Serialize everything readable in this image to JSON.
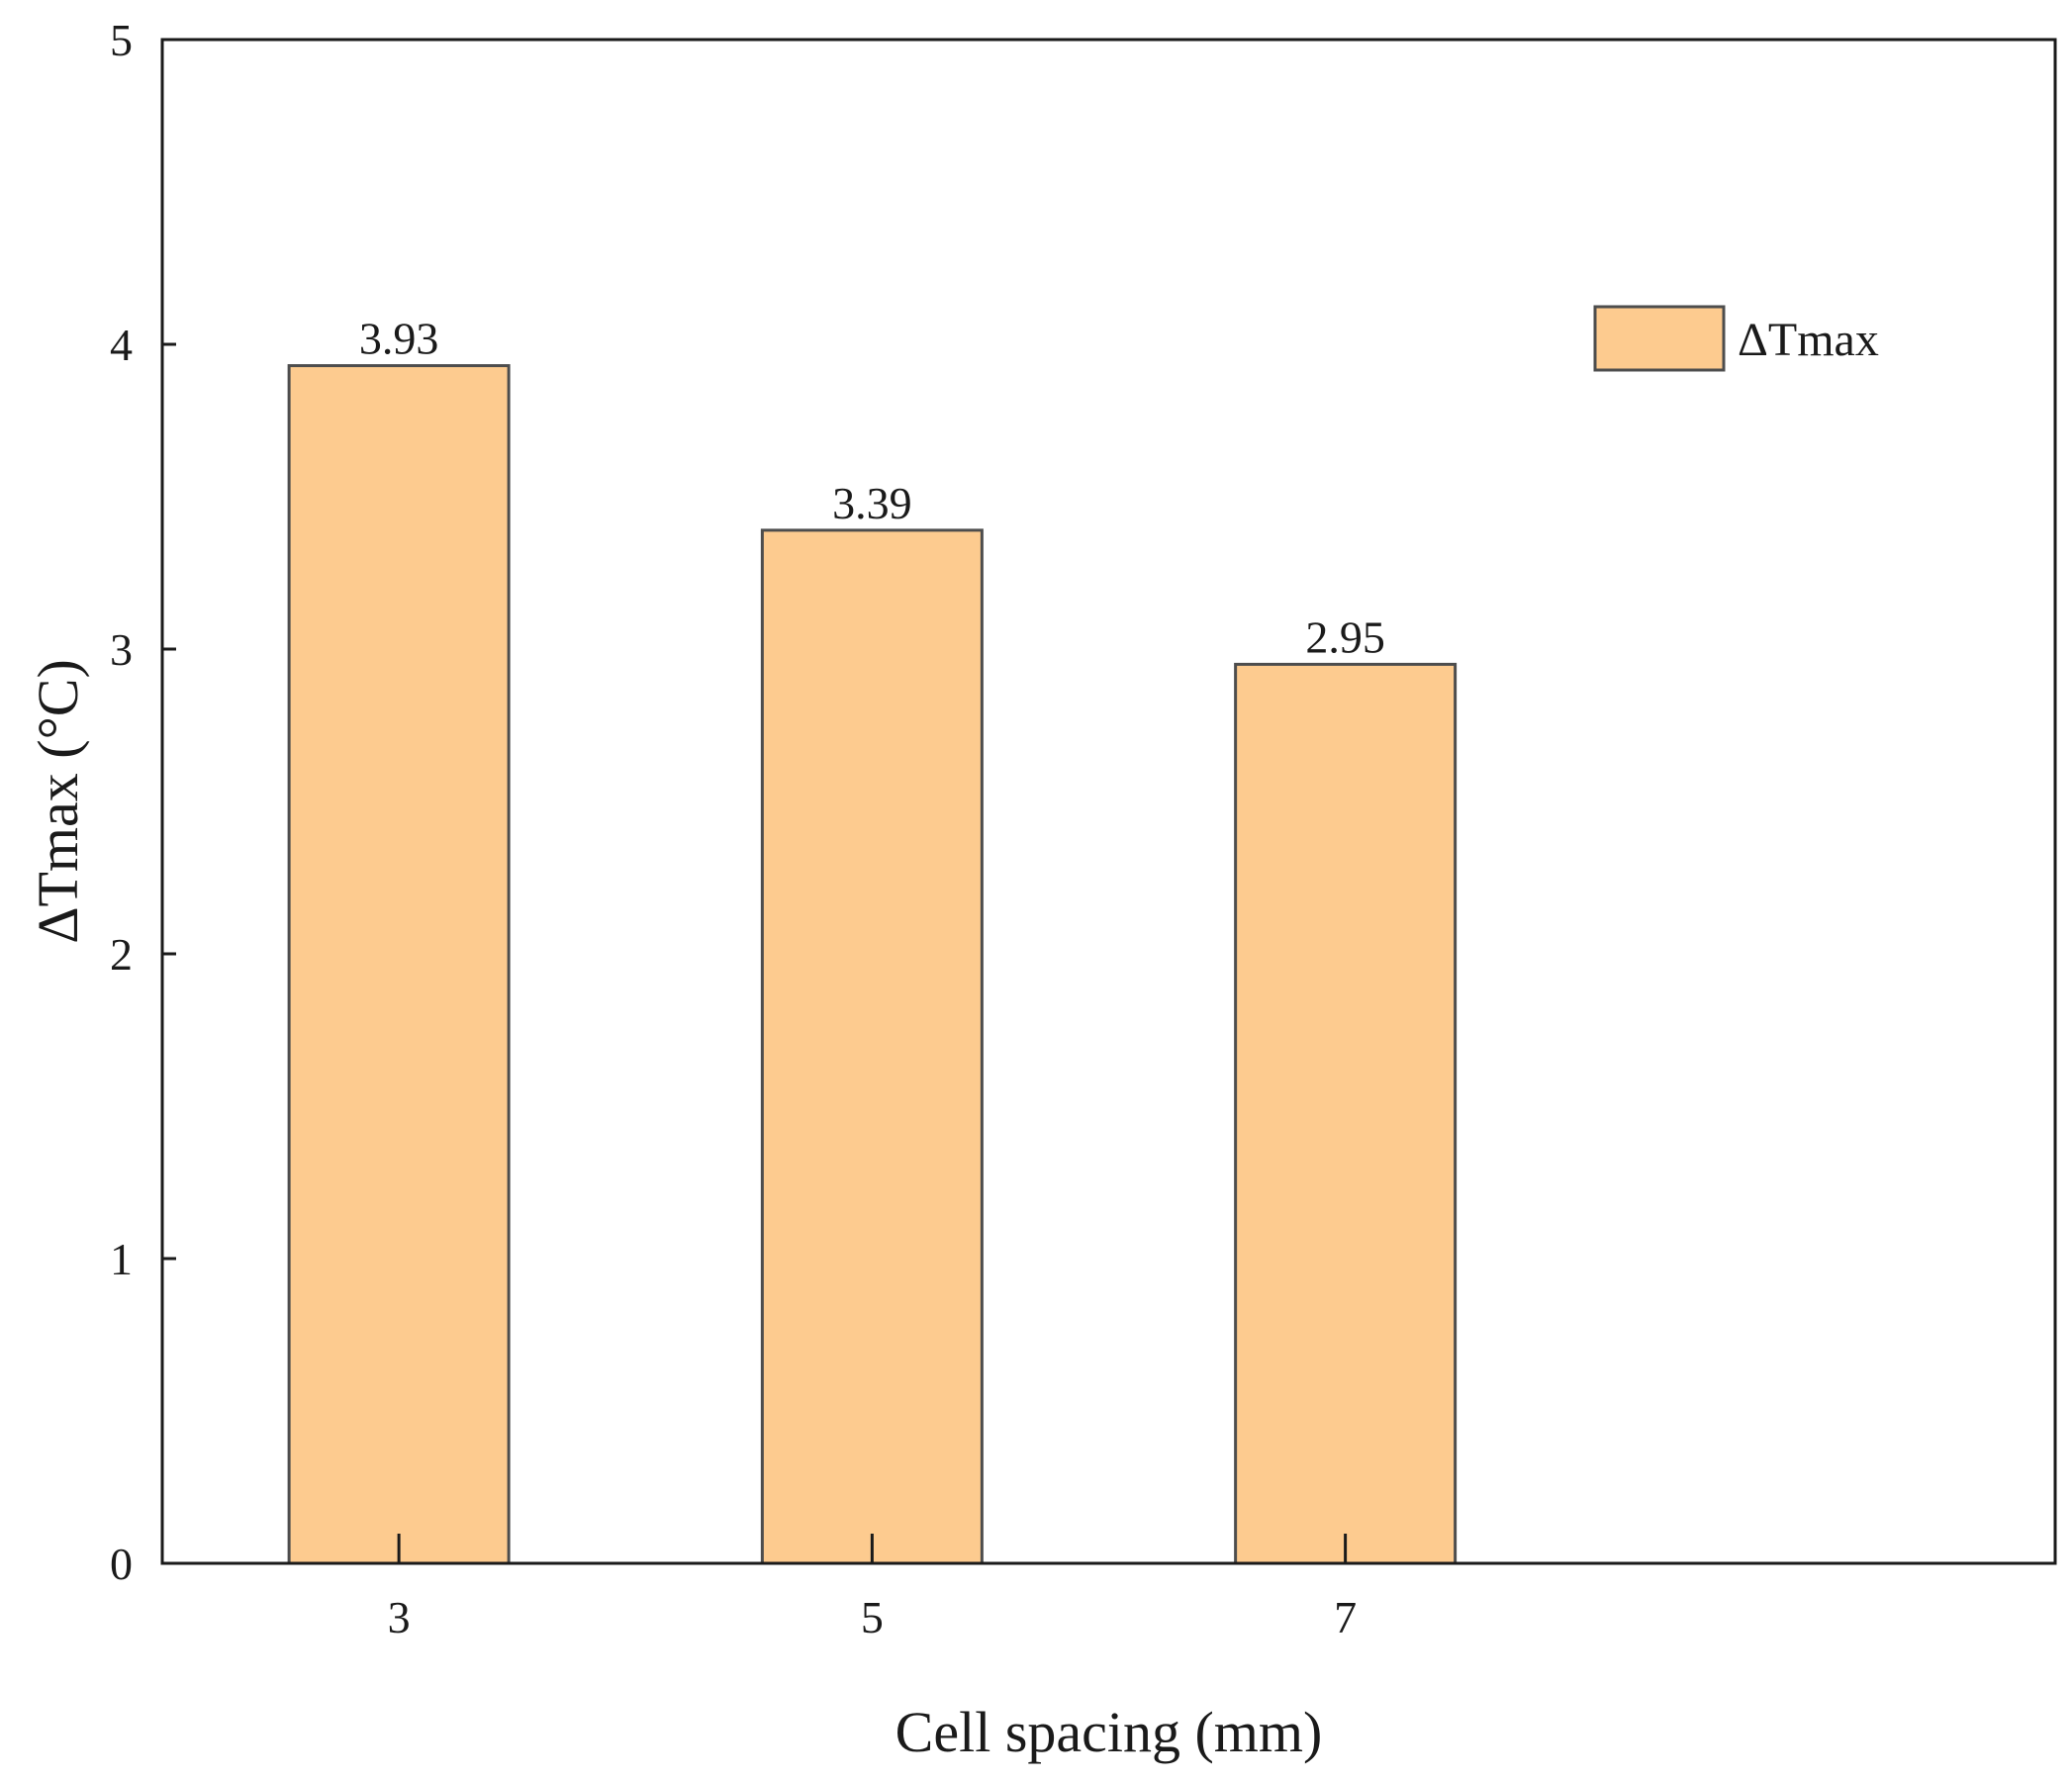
{
  "chart_data": {
    "type": "bar",
    "categories": [
      "3",
      "5",
      "7"
    ],
    "series": [
      {
        "name": "ΔTmax",
        "values": [
          3.93,
          3.39,
          2.95
        ]
      }
    ],
    "data_labels": [
      "3.93",
      "3.39",
      "2.95"
    ],
    "xlabel": "Cell spacing (mm)",
    "ylabel": "ΔTmax (°C)",
    "ylim": [
      0,
      5
    ],
    "yticks": [
      0,
      1,
      2,
      3,
      4,
      5
    ],
    "grid": false,
    "legend_position": "top-right",
    "colors": {
      "bar_fill": "#fdcb8f",
      "bar_stroke": "#4d4d4d",
      "axis": "#1a1a1a"
    }
  }
}
